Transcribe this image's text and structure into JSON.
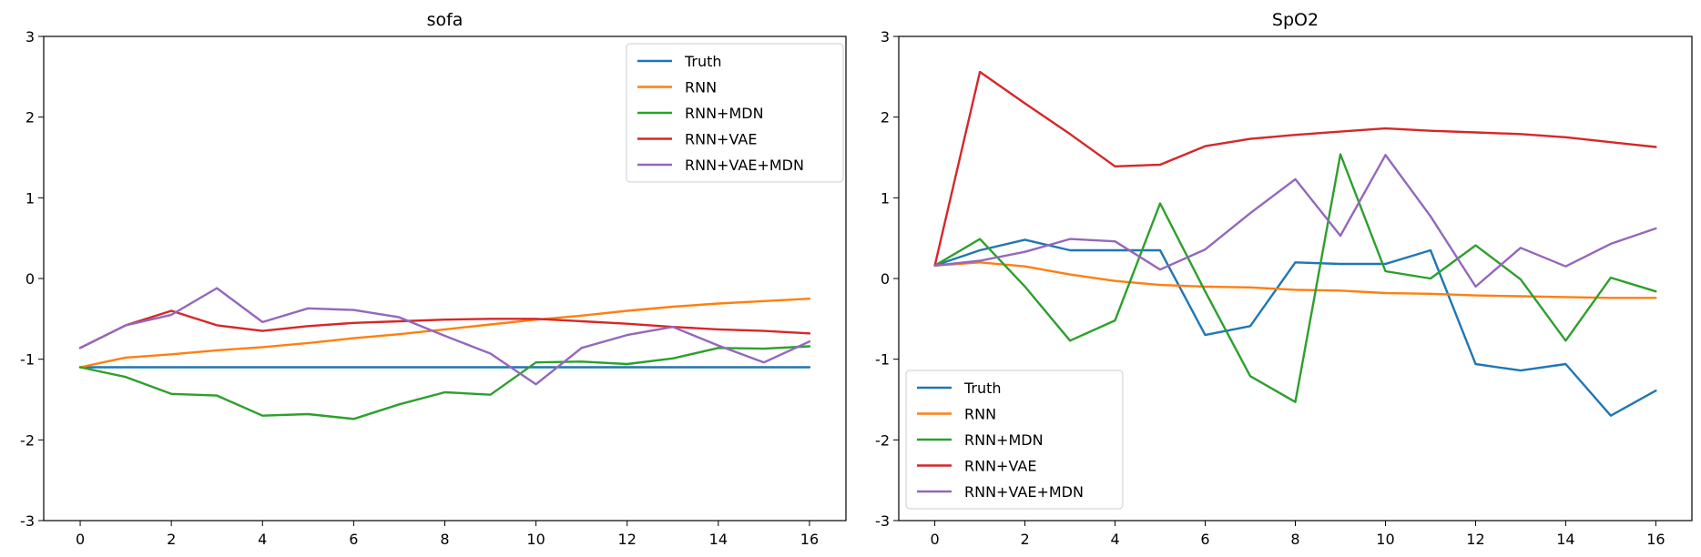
{
  "chart_data": [
    {
      "type": "line",
      "title": "sofa",
      "xlabel": "",
      "ylabel": "",
      "xlim": [
        -0.8,
        16.8
      ],
      "ylim": [
        -3,
        3
      ],
      "xticks": [
        0,
        2,
        4,
        6,
        8,
        10,
        12,
        14,
        16
      ],
      "yticks": [
        -3,
        -2,
        -1,
        0,
        1,
        2,
        3
      ],
      "grid": false,
      "legend_position": "upper right",
      "x": [
        0,
        1,
        2,
        3,
        4,
        5,
        6,
        7,
        8,
        9,
        10,
        11,
        12,
        13,
        14,
        15,
        16
      ],
      "series": [
        {
          "name": "Truth",
          "color": "#1f77b4",
          "values": [
            -1.1,
            -1.1,
            -1.1,
            -1.1,
            -1.1,
            -1.1,
            -1.1,
            -1.1,
            -1.1,
            -1.1,
            -1.1,
            -1.1,
            -1.1,
            -1.1,
            -1.1,
            -1.1,
            -1.1
          ]
        },
        {
          "name": "RNN",
          "color": "#ff7f0e",
          "values": [
            -1.1,
            -0.98,
            -0.94,
            -0.89,
            -0.85,
            -0.8,
            -0.74,
            -0.69,
            -0.63,
            -0.57,
            -0.51,
            -0.46,
            -0.4,
            -0.35,
            -0.31,
            -0.28,
            -0.25
          ]
        },
        {
          "name": "RNN+MDN",
          "color": "#2ca02c",
          "values": [
            -1.1,
            -1.22,
            -1.43,
            -1.45,
            -1.7,
            -1.68,
            -1.74,
            -1.56,
            -1.41,
            -1.44,
            -1.04,
            -1.03,
            -1.06,
            -0.99,
            -0.86,
            -0.87,
            -0.84
          ]
        },
        {
          "name": "RNN+VAE",
          "color": "#d62728",
          "values": [
            -0.86,
            -0.58,
            -0.4,
            -0.58,
            -0.65,
            -0.59,
            -0.55,
            -0.53,
            -0.51,
            -0.5,
            -0.5,
            -0.53,
            -0.56,
            -0.6,
            -0.63,
            -0.65,
            -0.68
          ]
        },
        {
          "name": "RNN+VAE+MDN",
          "color": "#9467bd",
          "values": [
            -0.86,
            -0.58,
            -0.45,
            -0.12,
            -0.54,
            -0.37,
            -0.39,
            -0.48,
            -0.71,
            -0.93,
            -1.31,
            -0.86,
            -0.7,
            -0.6,
            -0.83,
            -1.04,
            -0.78
          ]
        }
      ]
    },
    {
      "type": "line",
      "title": "SpO2",
      "xlabel": "",
      "ylabel": "",
      "xlim": [
        -0.8,
        16.8
      ],
      "ylim": [
        -3,
        3
      ],
      "xticks": [
        0,
        2,
        4,
        6,
        8,
        10,
        12,
        14,
        16
      ],
      "yticks": [
        -3,
        -2,
        -1,
        0,
        1,
        2,
        3
      ],
      "grid": false,
      "legend_position": "lower left",
      "x": [
        0,
        1,
        2,
        3,
        4,
        5,
        6,
        7,
        8,
        9,
        10,
        11,
        12,
        13,
        14,
        15,
        16
      ],
      "series": [
        {
          "name": "Truth",
          "color": "#1f77b4",
          "values": [
            0.16,
            0.35,
            0.48,
            0.35,
            0.35,
            0.35,
            -0.7,
            -0.59,
            0.2,
            0.18,
            0.18,
            0.35,
            -1.06,
            -1.14,
            -1.06,
            -1.7,
            -1.39
          ]
        },
        {
          "name": "RNN",
          "color": "#ff7f0e",
          "values": [
            0.16,
            0.2,
            0.15,
            0.05,
            -0.03,
            -0.08,
            -0.1,
            -0.11,
            -0.14,
            -0.15,
            -0.18,
            -0.19,
            -0.21,
            -0.22,
            -0.23,
            -0.24,
            -0.24
          ]
        },
        {
          "name": "RNN+MDN",
          "color": "#2ca02c",
          "values": [
            0.16,
            0.49,
            -0.1,
            -0.77,
            -0.52,
            0.93,
            -0.16,
            -1.21,
            -1.53,
            1.54,
            0.09,
            0.0,
            0.41,
            -0.01,
            -0.77,
            0.01,
            -0.16
          ]
        },
        {
          "name": "RNN+VAE",
          "color": "#d62728",
          "values": [
            0.16,
            2.56,
            2.17,
            1.79,
            1.39,
            1.41,
            1.64,
            1.73,
            1.78,
            1.82,
            1.86,
            1.83,
            1.81,
            1.79,
            1.75,
            1.69,
            1.63
          ]
        },
        {
          "name": "RNN+VAE+MDN",
          "color": "#9467bd",
          "values": [
            0.16,
            0.22,
            0.33,
            0.49,
            0.46,
            0.11,
            0.36,
            0.81,
            1.23,
            0.53,
            1.53,
            0.77,
            -0.1,
            0.38,
            0.15,
            0.43,
            0.62
          ]
        }
      ]
    }
  ]
}
